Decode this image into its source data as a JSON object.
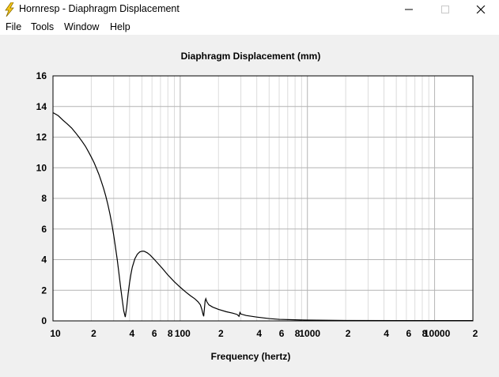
{
  "window": {
    "title": "Hornresp - Diaphragm Displacement",
    "icon": "lightning-bolt-icon",
    "controls": [
      "minimize-icon",
      "maximize-icon",
      "close-icon"
    ]
  },
  "menu": {
    "items": [
      "File",
      "Tools",
      "Window",
      "Help"
    ]
  },
  "colors": {
    "plot_background": "#ffffff",
    "grid_major": "#b4b4b4",
    "grid_minor": "#dcdcdc",
    "curve": "#000000",
    "icon": "#f5c518"
  },
  "chart_data": {
    "type": "line",
    "title": "Diaphragm Displacement (mm)",
    "xlabel": "Frequency (hertz)",
    "ylabel": "",
    "x_scale": "log",
    "xlim": [
      10,
      20000
    ],
    "ylim": [
      0,
      16
    ],
    "grid": true,
    "y_ticks": [
      "0",
      "2",
      "4",
      "6",
      "8",
      "10",
      "12",
      "14",
      "16"
    ],
    "x_ticks": [
      {
        "value": 10,
        "label": "10"
      },
      {
        "value": 20,
        "label": "2"
      },
      {
        "value": 40,
        "label": "4"
      },
      {
        "value": 60,
        "label": "6"
      },
      {
        "value": 80,
        "label": "8"
      },
      {
        "value": 100,
        "label": "100"
      },
      {
        "value": 200,
        "label": "2"
      },
      {
        "value": 400,
        "label": "4"
      },
      {
        "value": 600,
        "label": "6"
      },
      {
        "value": 800,
        "label": "8"
      },
      {
        "value": 1000,
        "label": "1000"
      },
      {
        "value": 2000,
        "label": "2"
      },
      {
        "value": 4000,
        "label": "4"
      },
      {
        "value": 6000,
        "label": "6"
      },
      {
        "value": 8000,
        "label": "8"
      },
      {
        "value": 10000,
        "label": "10000"
      },
      {
        "value": 20000,
        "label": "2"
      }
    ],
    "series": [
      {
        "points": [
          [
            10,
            13.6
          ],
          [
            11,
            13.4
          ],
          [
            12,
            13.1
          ],
          [
            13,
            12.85
          ],
          [
            14,
            12.6
          ],
          [
            15,
            12.3
          ],
          [
            16,
            12.0
          ],
          [
            17,
            11.7
          ],
          [
            18,
            11.4
          ],
          [
            19,
            11.05
          ],
          [
            20,
            10.7
          ],
          [
            21,
            10.35
          ],
          [
            22,
            9.95
          ],
          [
            23,
            9.55
          ],
          [
            24,
            9.1
          ],
          [
            25,
            8.65
          ],
          [
            26,
            8.15
          ],
          [
            27,
            7.6
          ],
          [
            28,
            7.0
          ],
          [
            29,
            6.35
          ],
          [
            30,
            5.6
          ],
          [
            31,
            4.8
          ],
          [
            32,
            4.0
          ],
          [
            33,
            3.1
          ],
          [
            34,
            2.2
          ],
          [
            35,
            1.4
          ],
          [
            36,
            0.65
          ],
          [
            37,
            0.25
          ],
          [
            38,
            0.9
          ],
          [
            39,
            1.8
          ],
          [
            40,
            2.5
          ],
          [
            41,
            3.05
          ],
          [
            42,
            3.5
          ],
          [
            44,
            4.05
          ],
          [
            46,
            4.35
          ],
          [
            48,
            4.5
          ],
          [
            50,
            4.55
          ],
          [
            52,
            4.55
          ],
          [
            55,
            4.45
          ],
          [
            58,
            4.3
          ],
          [
            62,
            4.05
          ],
          [
            66,
            3.8
          ],
          [
            72,
            3.45
          ],
          [
            80,
            3.0
          ],
          [
            90,
            2.55
          ],
          [
            100,
            2.2
          ],
          [
            110,
            1.9
          ],
          [
            120,
            1.65
          ],
          [
            130,
            1.45
          ],
          [
            138,
            1.25
          ],
          [
            144,
            1.05
          ],
          [
            148,
            0.75
          ],
          [
            151,
            0.45
          ],
          [
            153,
            0.3
          ],
          [
            155,
            0.8
          ],
          [
            157,
            1.3
          ],
          [
            159,
            1.45
          ],
          [
            162,
            1.25
          ],
          [
            168,
            1.05
          ],
          [
            180,
            0.9
          ],
          [
            200,
            0.75
          ],
          [
            230,
            0.6
          ],
          [
            260,
            0.5
          ],
          [
            280,
            0.42
          ],
          [
            290,
            0.3
          ],
          [
            295,
            0.55
          ],
          [
            300,
            0.45
          ],
          [
            330,
            0.35
          ],
          [
            400,
            0.25
          ],
          [
            500,
            0.15
          ],
          [
            600,
            0.1
          ],
          [
            800,
            0.07
          ],
          [
            1000,
            0.05
          ],
          [
            2000,
            0.03
          ],
          [
            5000,
            0.02
          ],
          [
            10000,
            0.02
          ],
          [
            20000,
            0.02
          ]
        ]
      }
    ]
  }
}
